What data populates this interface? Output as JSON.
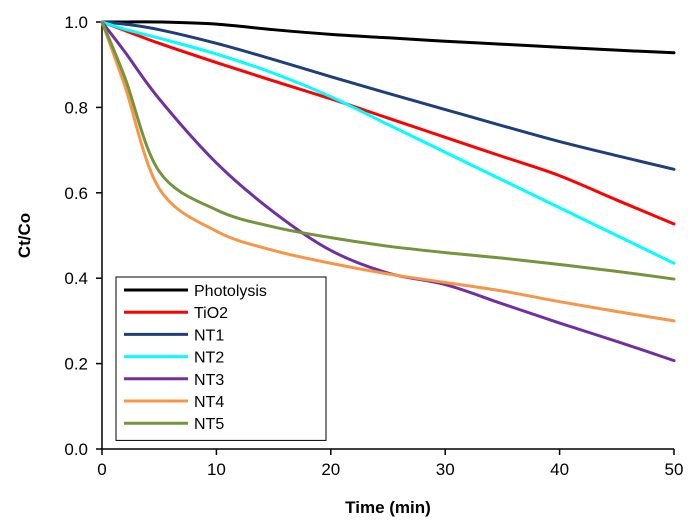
{
  "chart_data": {
    "type": "line",
    "title": "",
    "xlabel": "Time (min)",
    "ylabel": "Ct/Co",
    "xlim": [
      0,
      50
    ],
    "ylim": [
      0,
      1.0
    ],
    "x_ticks": [
      0,
      10,
      20,
      30,
      40,
      50
    ],
    "y_ticks": [
      0.0,
      0.2,
      0.4,
      0.6,
      0.8,
      1.0
    ],
    "x_tick_labels": [
      "0",
      "10",
      "20",
      "30",
      "40",
      "50"
    ],
    "y_tick_labels": [
      "0.0",
      "0.2",
      "0.4",
      "0.6",
      "0.8",
      "1.0"
    ],
    "grid": false,
    "legend_position": "bottom-left",
    "x": [
      0,
      2,
      5,
      10,
      15,
      20,
      25,
      30,
      35,
      40,
      45,
      50
    ],
    "series": [
      {
        "name": "Photolysis",
        "color": "#000000",
        "values": [
          1.0,
          1.0,
          1.0,
          0.995,
          0.982,
          0.971,
          0.963,
          0.955,
          0.948,
          0.941,
          0.934,
          0.928
        ]
      },
      {
        "name": "TiO2",
        "color": "#ff0000",
        "values": [
          1.0,
          0.98,
          0.95,
          0.905,
          0.862,
          0.82,
          0.775,
          0.73,
          0.685,
          0.64,
          0.583,
          0.527
        ]
      },
      {
        "name": "NT1",
        "color": "#1f3f7a",
        "values": [
          1.0,
          0.995,
          0.982,
          0.95,
          0.912,
          0.872,
          0.833,
          0.795,
          0.757,
          0.72,
          0.687,
          0.655
        ]
      },
      {
        "name": "NT2",
        "color": "#00ffff",
        "values": [
          1.0,
          0.983,
          0.962,
          0.925,
          0.88,
          0.825,
          0.76,
          0.695,
          0.63,
          0.565,
          0.5,
          0.435
        ]
      },
      {
        "name": "NT3",
        "color": "#7030a0",
        "values": [
          1.0,
          0.93,
          0.82,
          0.67,
          0.555,
          0.465,
          0.412,
          0.385,
          0.34,
          0.295,
          0.252,
          0.207
        ]
      },
      {
        "name": "NT4",
        "color": "#f79646",
        "values": [
          1.0,
          0.85,
          0.61,
          0.51,
          0.465,
          0.435,
          0.41,
          0.39,
          0.37,
          0.345,
          0.322,
          0.3
        ]
      },
      {
        "name": "NT5",
        "color": "#77933c",
        "values": [
          1.0,
          0.87,
          0.65,
          0.56,
          0.52,
          0.495,
          0.475,
          0.46,
          0.447,
          0.432,
          0.416,
          0.398
        ]
      }
    ]
  }
}
